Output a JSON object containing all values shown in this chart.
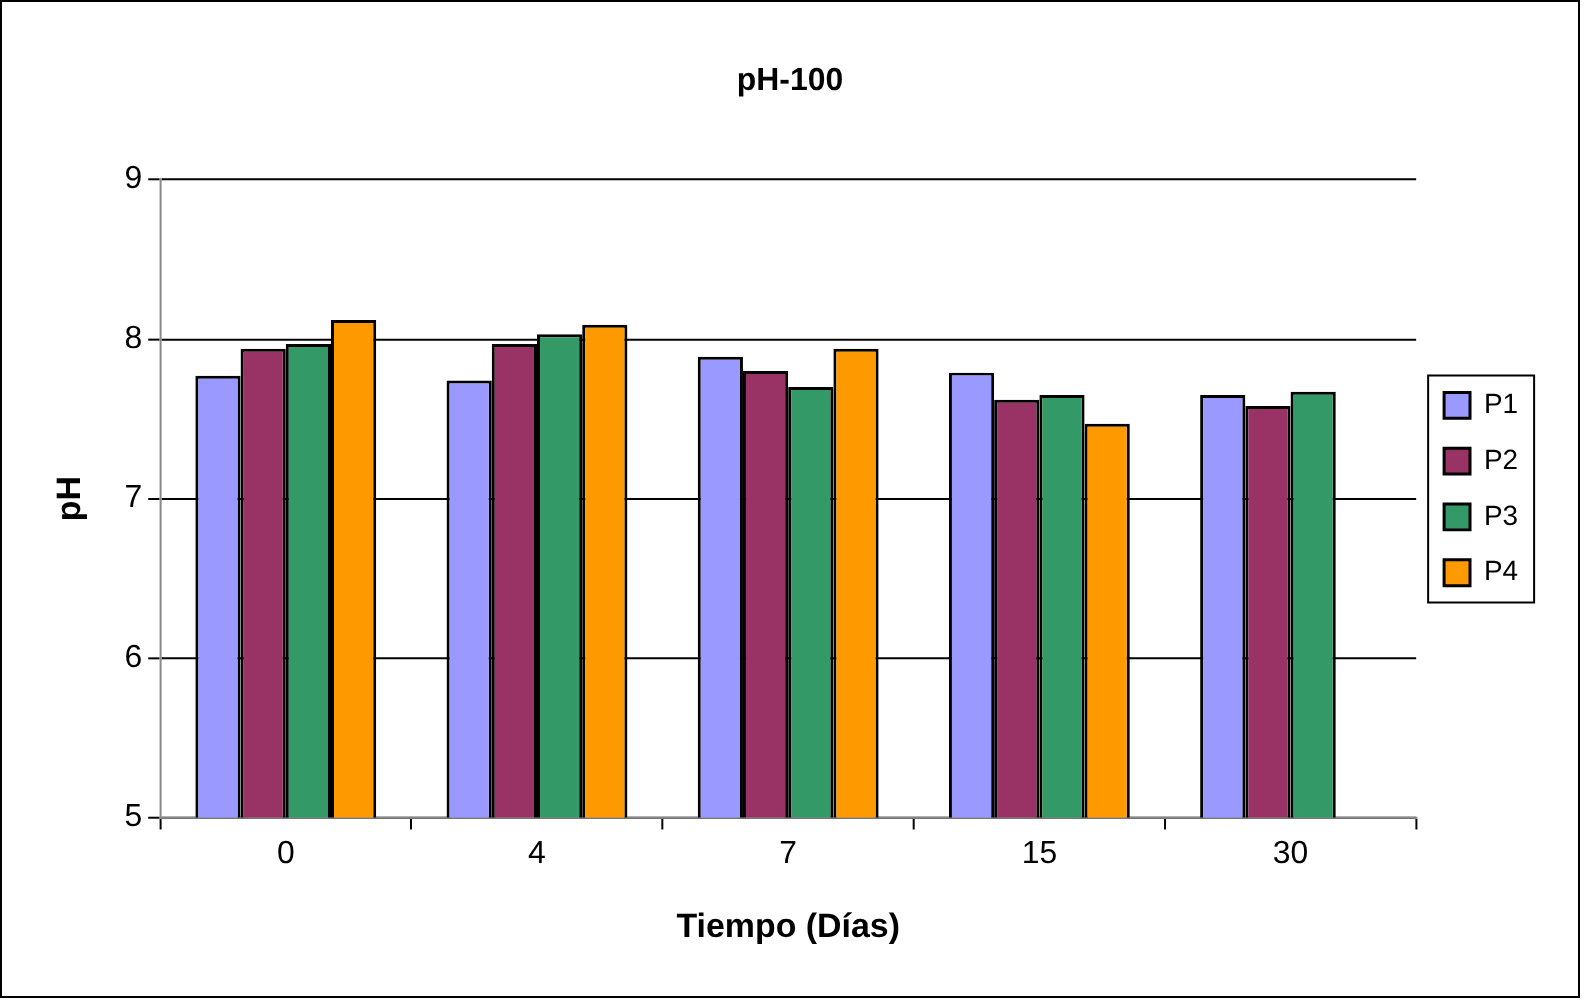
{
  "chart_data": {
    "type": "bar",
    "title": "pH-100",
    "xlabel": "Tiempo (Días)",
    "ylabel": "pH",
    "categories": [
      "0",
      "4",
      "7",
      "15",
      "30"
    ],
    "series": [
      {
        "name": "P1",
        "color": "#9999ff",
        "values": [
          7.77,
          7.74,
          7.89,
          7.79,
          7.65
        ]
      },
      {
        "name": "P2",
        "color": "#993366",
        "values": [
          7.94,
          7.97,
          7.8,
          7.62,
          7.58
        ]
      },
      {
        "name": "P3",
        "color": "#339966",
        "values": [
          7.97,
          8.03,
          7.7,
          7.65,
          7.67
        ]
      },
      {
        "name": "P4",
        "color": "#ff9900",
        "values": [
          8.12,
          8.09,
          7.94,
          7.47,
          null
        ]
      }
    ],
    "ylim": [
      5,
      9
    ],
    "yticks": [
      5,
      6,
      7,
      8,
      9
    ],
    "grid": "y",
    "legend": "right"
  }
}
